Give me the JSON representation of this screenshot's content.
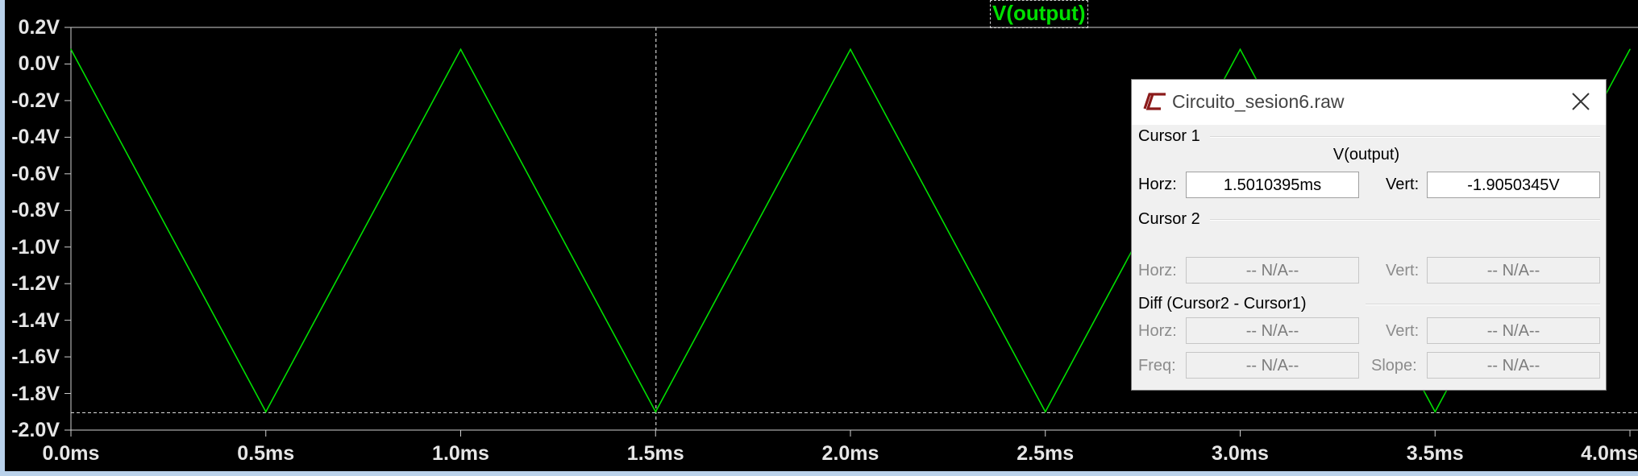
{
  "plot": {
    "trace_label": "V(output)",
    "trace_color": "#00e000",
    "background": "#000000",
    "y_ticks": [
      "0.2V",
      "0.0V",
      "-0.2V",
      "-0.4V",
      "-0.6V",
      "-0.8V",
      "-1.0V",
      "-1.2V",
      "-1.4V",
      "-1.6V",
      "-1.8V",
      "-2.0V"
    ],
    "x_ticks": [
      "0.0ms",
      "0.5ms",
      "1.0ms",
      "1.5ms",
      "2.0ms",
      "2.5ms",
      "3.0ms",
      "3.5ms",
      "4.0ms"
    ]
  },
  "chart_data": {
    "type": "line",
    "title": "V(output)",
    "xlabel": "",
    "ylabel": "",
    "xlim": [
      0.0,
      4.0
    ],
    "ylim": [
      -2.0,
      0.2
    ],
    "grid": false,
    "series": [
      {
        "name": "V(output)",
        "x": [
          0.0,
          0.5,
          1.0,
          1.5,
          2.0,
          2.5,
          3.0,
          3.5,
          4.0
        ],
        "y": [
          0.08,
          -1.9,
          0.08,
          -1.9,
          0.08,
          -1.9,
          0.08,
          -1.9,
          0.08
        ]
      }
    ],
    "cursor": {
      "x": 1.5010395,
      "y": -1.9050345
    }
  },
  "dialog": {
    "title": "Circuito_sesion6.raw",
    "cursor1": {
      "heading": "Cursor 1",
      "trace": "V(output)",
      "horz_label": "Horz:",
      "horz_value": "1.5010395ms",
      "vert_label": "Vert:",
      "vert_value": "-1.9050345V"
    },
    "cursor2": {
      "heading": "Cursor 2",
      "horz_label": "Horz:",
      "horz_value": "-- N/A--",
      "vert_label": "Vert:",
      "vert_value": "-- N/A--"
    },
    "diff": {
      "heading": "Diff (Cursor2 - Cursor1)",
      "horz_label": "Horz:",
      "horz_value": "-- N/A--",
      "vert_label": "Vert:",
      "vert_value": "-- N/A--",
      "freq_label": "Freq:",
      "freq_value": "-- N/A--",
      "slope_label": "Slope:",
      "slope_value": "-- N/A--"
    }
  }
}
